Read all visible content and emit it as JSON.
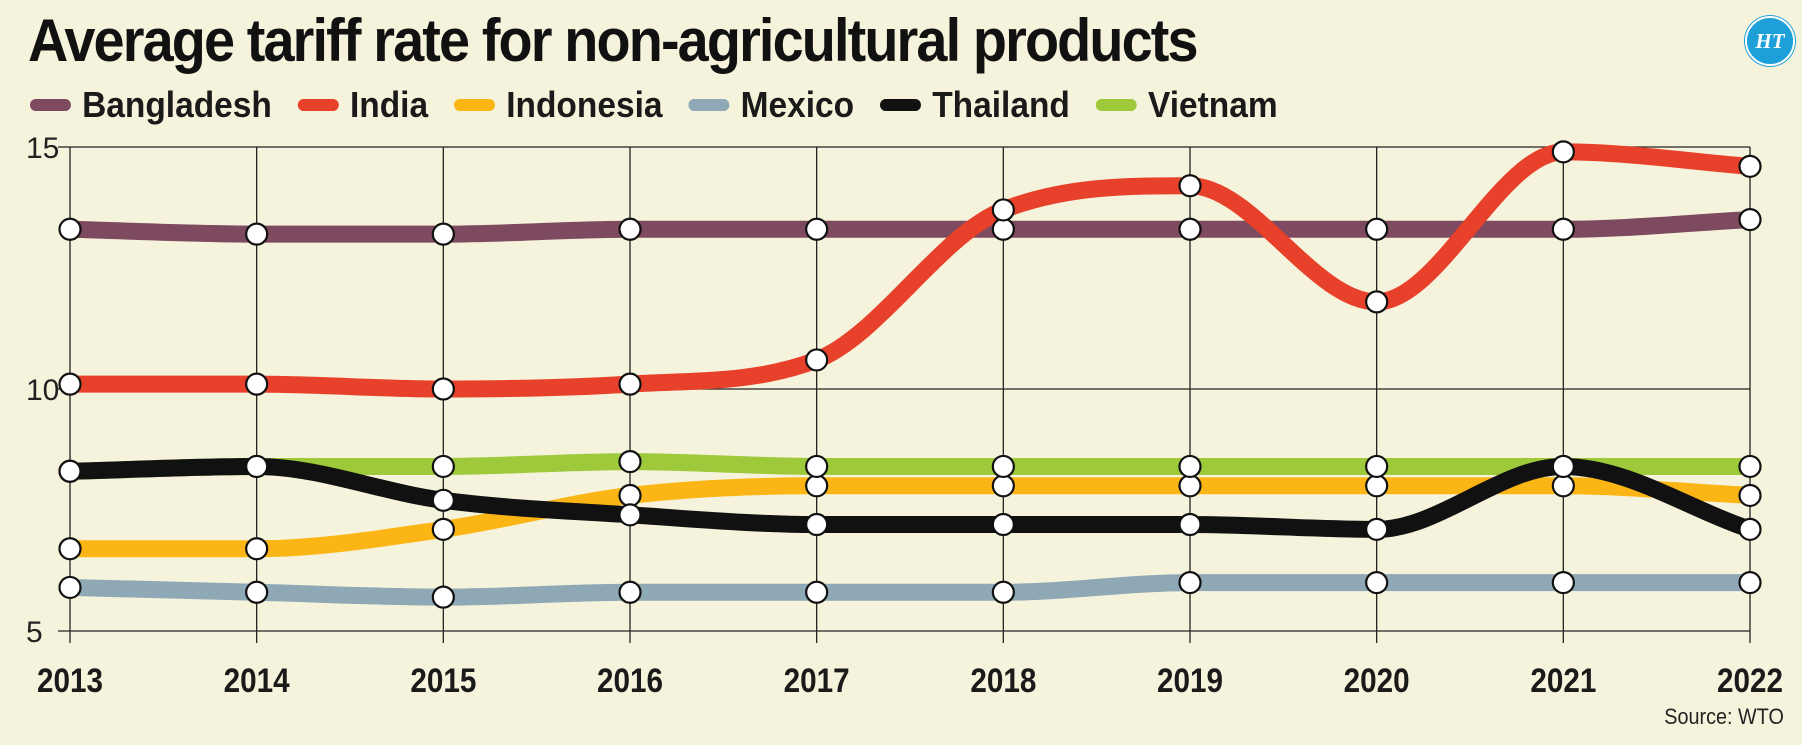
{
  "title": "Average tariff rate for non-agricultural products",
  "logo_text": "HT",
  "source": "Source: WTO",
  "chart_data": {
    "type": "line",
    "x": [
      "2013",
      "2014",
      "2015",
      "2016",
      "2017",
      "2018",
      "2019",
      "2020",
      "2021",
      "2022"
    ],
    "ylim": [
      5,
      15
    ],
    "yticks": [
      5,
      10,
      15
    ],
    "grid": true,
    "legend_position": "top",
    "series": [
      {
        "name": "Bangladesh",
        "color": "#7d4a5f",
        "values": [
          13.3,
          13.2,
          13.2,
          13.3,
          13.3,
          13.3,
          13.3,
          13.3,
          13.3,
          13.5
        ]
      },
      {
        "name": "India",
        "color": "#e8412b",
        "values": [
          10.1,
          10.1,
          10.0,
          10.1,
          10.6,
          13.7,
          14.2,
          11.8,
          14.9,
          14.6
        ]
      },
      {
        "name": "Indonesia",
        "color": "#fbb616",
        "values": [
          6.7,
          6.7,
          7.1,
          7.8,
          8.0,
          8.0,
          8.0,
          8.0,
          8.0,
          7.8
        ]
      },
      {
        "name": "Mexico",
        "color": "#8fa8b5",
        "values": [
          5.9,
          5.8,
          5.7,
          5.8,
          5.8,
          5.8,
          6.0,
          6.0,
          6.0,
          6.0
        ]
      },
      {
        "name": "Thailand",
        "color": "#111111",
        "values": [
          8.3,
          8.4,
          7.7,
          7.4,
          7.2,
          7.2,
          7.2,
          7.1,
          8.4,
          7.1
        ]
      },
      {
        "name": "Vietnam",
        "color": "#9dc93b",
        "values": [
          8.3,
          8.4,
          8.4,
          8.5,
          8.4,
          8.4,
          8.4,
          8.4,
          8.4,
          8.4
        ]
      }
    ]
  }
}
